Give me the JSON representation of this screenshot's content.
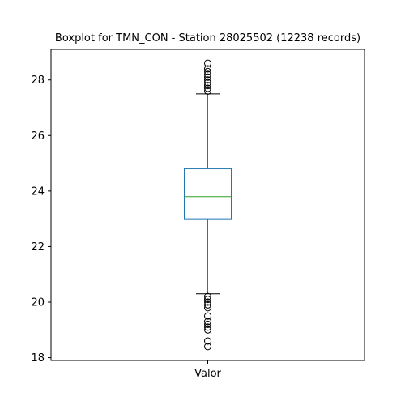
{
  "chart_data": {
    "type": "box",
    "title": "Boxplot for TMN_CON - Station 28025502 (12238 records)",
    "xlabel": "",
    "ylabel": "",
    "categories": [
      "Valor"
    ],
    "ylim": [
      17.9,
      29.1
    ],
    "yticks": [
      18,
      20,
      22,
      24,
      26,
      28
    ],
    "grid": false,
    "box": {
      "whisker_low": 20.3,
      "q1": 23.0,
      "median": 23.8,
      "q3": 24.8,
      "whisker_high": 27.5,
      "outliers_low": [
        20.2,
        20.1,
        20.0,
        19.9,
        19.8,
        19.5,
        19.3,
        19.2,
        19.1,
        19.0,
        18.6,
        18.4
      ],
      "outliers_high": [
        27.6,
        27.7,
        27.8,
        27.9,
        28.0,
        28.1,
        28.2,
        28.3,
        28.4,
        28.6
      ]
    },
    "colors": {
      "box": "#1f77b4",
      "median": "#2ca02c",
      "caps": "#000000",
      "outliers": "#000000"
    }
  }
}
